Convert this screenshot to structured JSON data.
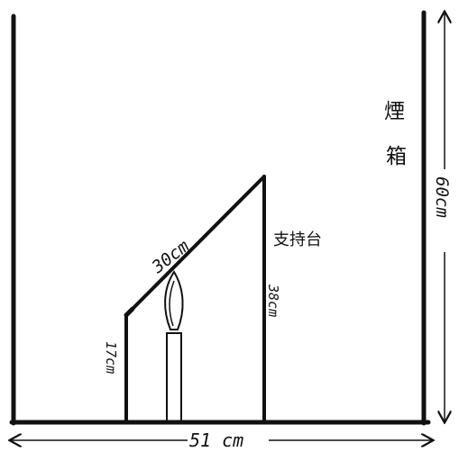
{
  "labels": {
    "smoke_box": "煙箱",
    "smoke_box_char1": "煙",
    "smoke_box_char2": "箱",
    "support_stand": "支持台",
    "slope_length": "30cm",
    "stand_height": "38cm",
    "short_post_height": "17cm",
    "box_width": "51 cm",
    "box_height": "60cm"
  },
  "colors": {
    "ink": "#111111",
    "background": "#ffffff"
  }
}
